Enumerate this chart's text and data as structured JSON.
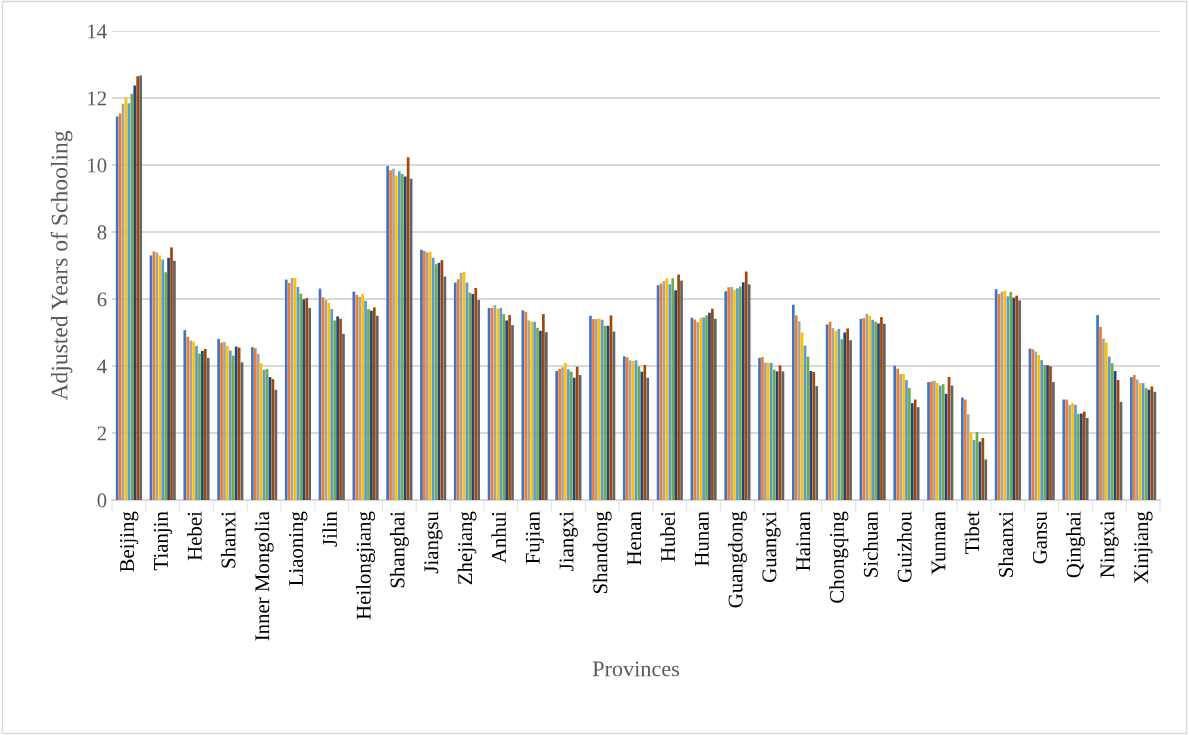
{
  "chart_data": {
    "type": "bar",
    "xlabel": "Provinces",
    "ylabel": "Adjusted Years of Schooling",
    "categories": [
      "Beijing",
      "Tianjin",
      "Hebei",
      "Shanxi",
      "Inner Mongolia",
      "Liaoning",
      "Jilin",
      "Heilongjiang",
      "Shanghai",
      "Jiangsu",
      "Zhejiang",
      "Anhui",
      "Fujian",
      "Jiangxi",
      "Shandong",
      "Henan",
      "Hubei",
      "Hunan",
      "Guangdong",
      "Guangxi",
      "Hainan",
      "Chongqing",
      "Sichuan",
      "Guizhou",
      "Yunnan",
      "Tibet",
      "Shaanxi",
      "Gansu",
      "Qinghai",
      "Ningxia",
      "Xinjiang"
    ],
    "series": [
      {
        "color": "#4472c4",
        "values": [
          11.45,
          7.3,
          5.07,
          4.81,
          4.56,
          6.58,
          6.31,
          6.22,
          9.97,
          7.47,
          6.49,
          5.73,
          5.66,
          3.85,
          5.5,
          4.29,
          6.41,
          5.44,
          6.23,
          4.24,
          5.83,
          5.24,
          5.41,
          4.01,
          3.52,
          3.06,
          6.29,
          4.52,
          3.0,
          5.52,
          3.67
        ]
      },
      {
        "color": "#ed7d31",
        "values": [
          11.54,
          7.42,
          4.87,
          4.7,
          4.53,
          6.48,
          6.05,
          6.12,
          9.84,
          7.43,
          6.59,
          5.73,
          5.62,
          3.91,
          5.4,
          4.26,
          6.46,
          5.39,
          6.35,
          4.27,
          5.51,
          5.32,
          5.43,
          3.92,
          3.54,
          3.0,
          6.15,
          4.5,
          3.0,
          5.17,
          3.73
        ]
      },
      {
        "color": "#a5a5a5",
        "values": [
          11.83,
          7.39,
          4.76,
          4.72,
          4.36,
          6.63,
          5.97,
          6.07,
          9.89,
          7.39,
          6.78,
          5.82,
          5.36,
          3.96,
          5.4,
          4.17,
          6.54,
          5.31,
          6.36,
          4.1,
          5.33,
          5.13,
          5.56,
          3.76,
          3.56,
          2.56,
          6.22,
          4.43,
          2.84,
          4.82,
          3.6
        ]
      },
      {
        "color": "#ffc000",
        "values": [
          12.01,
          7.3,
          4.73,
          4.6,
          4.08,
          6.63,
          5.89,
          6.15,
          9.69,
          7.4,
          6.81,
          5.71,
          5.32,
          4.09,
          5.42,
          4.15,
          6.62,
          5.43,
          6.28,
          4.1,
          5.0,
          5.05,
          5.5,
          3.76,
          3.49,
          2.02,
          6.25,
          4.33,
          2.9,
          4.7,
          3.49
        ]
      },
      {
        "color": "#5b9bd5",
        "values": [
          11.84,
          7.18,
          4.6,
          4.46,
          3.89,
          6.36,
          5.7,
          5.95,
          9.81,
          7.23,
          6.49,
          5.73,
          5.32,
          3.9,
          5.38,
          4.17,
          6.44,
          5.45,
          6.32,
          4.09,
          4.61,
          5.11,
          5.38,
          3.58,
          3.41,
          1.79,
          6.08,
          4.18,
          2.84,
          4.28,
          3.49
        ]
      },
      {
        "color": "#70ad47",
        "values": [
          12.13,
          6.8,
          4.37,
          4.31,
          3.91,
          6.16,
          5.36,
          5.7,
          9.73,
          7.04,
          6.19,
          5.55,
          5.14,
          3.83,
          5.2,
          3.99,
          6.62,
          5.51,
          6.37,
          3.89,
          4.28,
          4.8,
          5.32,
          3.34,
          3.46,
          2.03,
          6.21,
          4.03,
          2.57,
          4.08,
          3.34
        ]
      },
      {
        "color": "#264478",
        "values": [
          12.37,
          7.23,
          4.45,
          4.58,
          3.67,
          5.99,
          5.48,
          5.65,
          9.66,
          7.08,
          6.15,
          5.36,
          5.05,
          3.65,
          5.2,
          3.83,
          6.26,
          5.59,
          6.5,
          3.84,
          3.85,
          5.0,
          5.27,
          2.89,
          3.17,
          1.74,
          6.04,
          4.02,
          2.58,
          3.85,
          3.29
        ]
      },
      {
        "color": "#9e480e",
        "values": [
          12.65,
          7.54,
          4.51,
          4.55,
          3.61,
          6.03,
          5.41,
          5.75,
          10.23,
          7.16,
          6.33,
          5.52,
          5.55,
          3.98,
          5.51,
          4.03,
          6.73,
          5.71,
          6.82,
          4.02,
          3.82,
          5.12,
          5.46,
          3.0,
          3.67,
          1.85,
          6.1,
          3.99,
          2.64,
          3.58,
          3.39
        ]
      },
      {
        "color": "#636363",
        "values": [
          12.67,
          7.14,
          4.24,
          4.11,
          3.29,
          5.73,
          4.96,
          5.5,
          9.59,
          6.67,
          5.97,
          5.22,
          5.01,
          3.73,
          5.03,
          3.65,
          6.55,
          5.41,
          6.44,
          3.84,
          3.4,
          4.77,
          5.26,
          2.77,
          3.42,
          1.21,
          5.96,
          3.52,
          2.45,
          2.93,
          3.23
        ]
      }
    ],
    "ylim": [
      0,
      14
    ],
    "yticks": [
      0,
      2,
      4,
      6,
      8,
      10,
      12,
      14
    ],
    "grid": "y",
    "legend": false
  }
}
